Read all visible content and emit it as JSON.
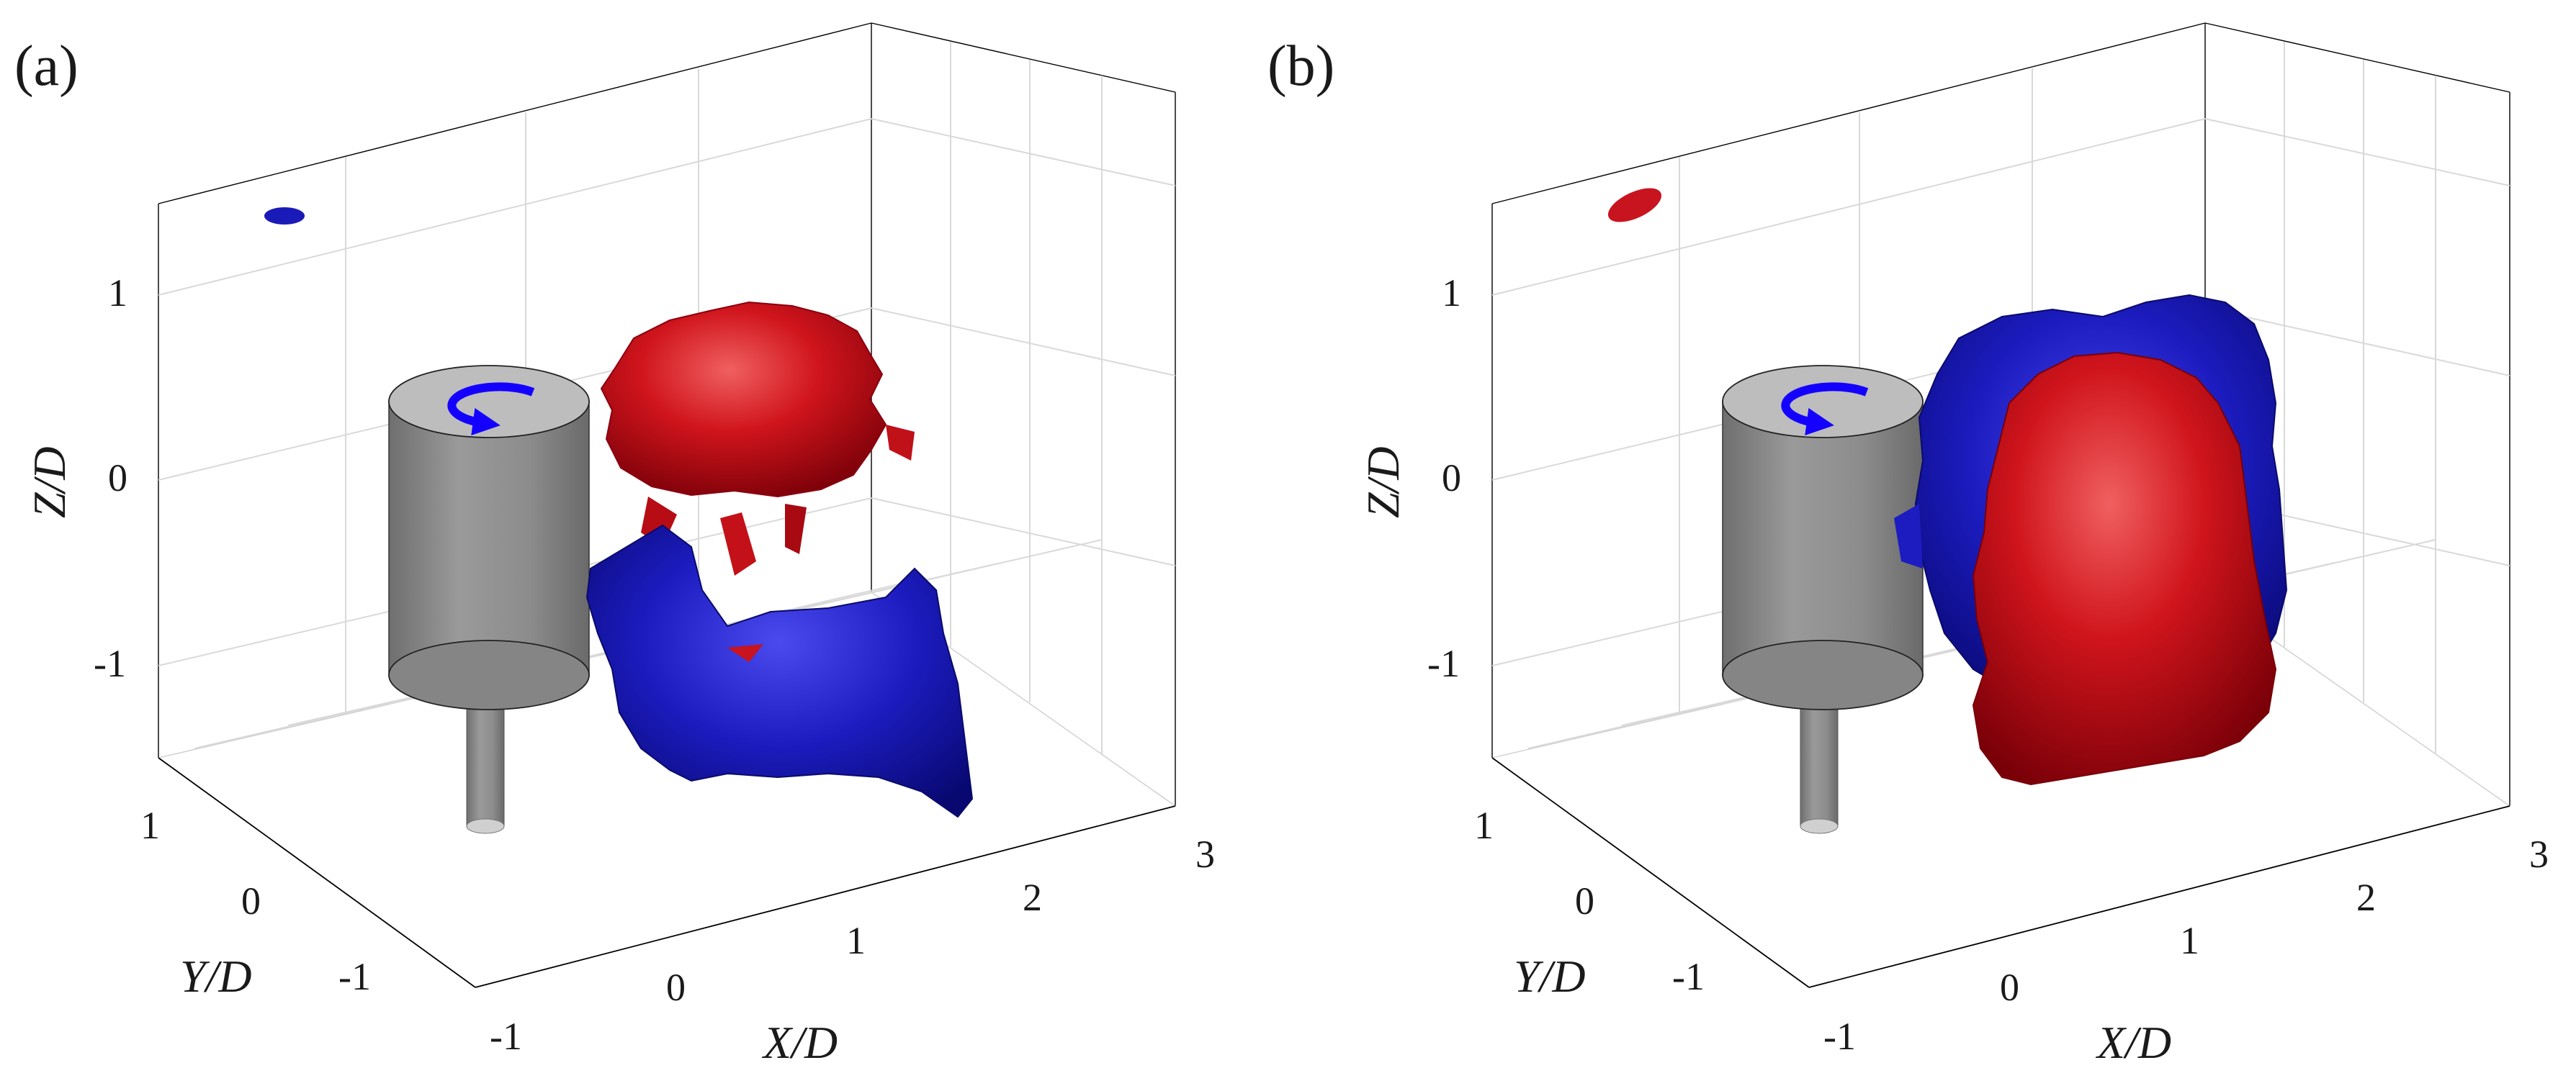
{
  "panels": [
    {
      "id": "a",
      "label": "(a)",
      "x_axis": {
        "label": "X/D",
        "ticks": [
          "-1",
          "0",
          "1",
          "2",
          "3"
        ]
      },
      "y_axis": {
        "label": "Y/D",
        "ticks": [
          "-1",
          "0",
          "1"
        ]
      },
      "z_axis": {
        "label": "Z/D",
        "ticks": [
          "1",
          "0",
          "-1"
        ]
      },
      "rotation_direction": "counterclockwise",
      "structures": [
        "red-upper-blob",
        "blue-lower-blob"
      ]
    },
    {
      "id": "b",
      "label": "(b)",
      "x_axis": {
        "label": "X/D",
        "ticks": [
          "-1",
          "0",
          "1",
          "2",
          "3"
        ]
      },
      "y_axis": {
        "label": "Y/D",
        "ticks": [
          "-1",
          "0",
          "1"
        ]
      },
      "z_axis": {
        "label": "Z/D",
        "ticks": [
          "1",
          "0",
          "-1"
        ]
      },
      "rotation_direction": "counterclockwise",
      "structures": [
        "blue-back-sheet",
        "red-front-sheet"
      ]
    }
  ],
  "colors": {
    "positive": "#c8141e",
    "negative": "#1a1ab8",
    "cylinder": "#8a8a8a",
    "arrow": "#1400ff",
    "grid": "#d9d9d9",
    "box": "#000000"
  }
}
